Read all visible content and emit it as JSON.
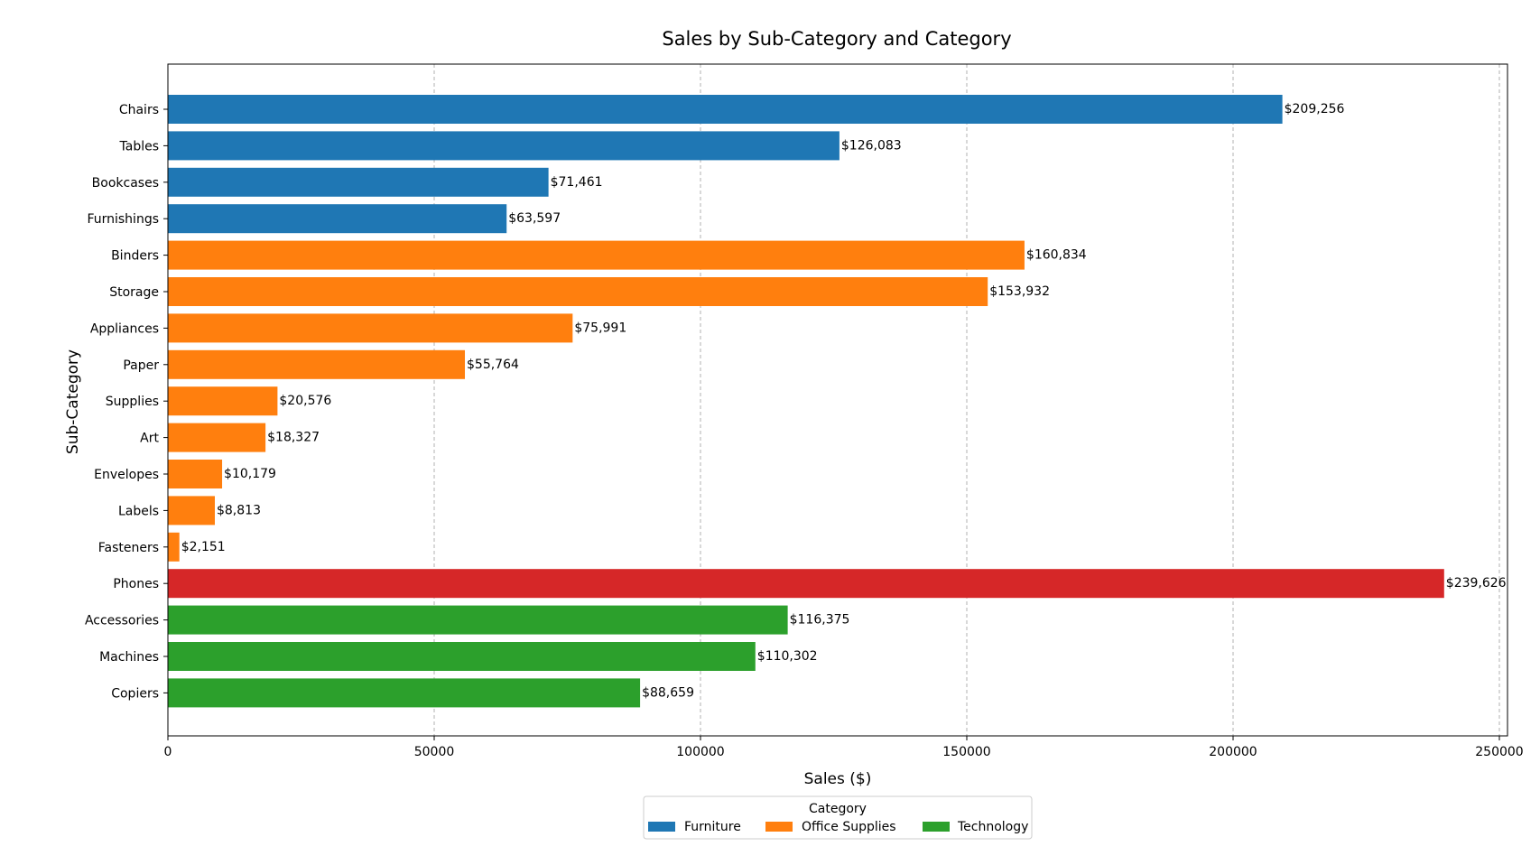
{
  "chart_data": {
    "type": "bar",
    "orientation": "horizontal",
    "title": "Sales by Sub-Category and Category",
    "xlabel": "Sales ($)",
    "ylabel": "Sub-Category",
    "xlim": [
      0,
      252000
    ],
    "xticks": [
      0,
      50000,
      100000,
      150000,
      200000,
      250000
    ],
    "xtick_labels": [
      "0",
      "50000",
      "100000",
      "150000",
      "200000",
      "250000"
    ],
    "grid": "x-axis dashed",
    "categories": [
      "Chairs",
      "Tables",
      "Bookcases",
      "Furnishings",
      "Binders",
      "Storage",
      "Appliances",
      "Paper",
      "Supplies",
      "Art",
      "Envelopes",
      "Labels",
      "Fasteners",
      "Phones",
      "Accessories",
      "Machines",
      "Copiers"
    ],
    "values": [
      209256,
      126083,
      71461,
      63597,
      160834,
      153932,
      75991,
      55764,
      20576,
      18327,
      10179,
      8813,
      2151,
      239626,
      116375,
      110302,
      88659
    ],
    "value_labels": [
      "$209,256",
      "$126,083",
      "$71,461",
      "$63,597",
      "$160,834",
      "$153,932",
      "$75,991",
      "$55,764",
      "$20,576",
      "$18,327",
      "$10,179",
      "$8,813",
      "$2,151",
      "$239,626",
      "$116,375",
      "$110,302",
      "$88,659"
    ],
    "bar_colors": [
      "#1f77b4",
      "#1f77b4",
      "#1f77b4",
      "#1f77b4",
      "#ff7f0e",
      "#ff7f0e",
      "#ff7f0e",
      "#ff7f0e",
      "#ff7f0e",
      "#ff7f0e",
      "#ff7f0e",
      "#ff7f0e",
      "#ff7f0e",
      "#d62728",
      "#2ca02c",
      "#2ca02c",
      "#2ca02c"
    ],
    "legend": {
      "title": "Category",
      "placement": "bottom-center",
      "entries": [
        {
          "name": "Furniture",
          "color": "#1f77b4"
        },
        {
          "name": "Office Supplies",
          "color": "#ff7f0e"
        },
        {
          "name": "Technology",
          "color": "#2ca02c"
        }
      ]
    }
  }
}
